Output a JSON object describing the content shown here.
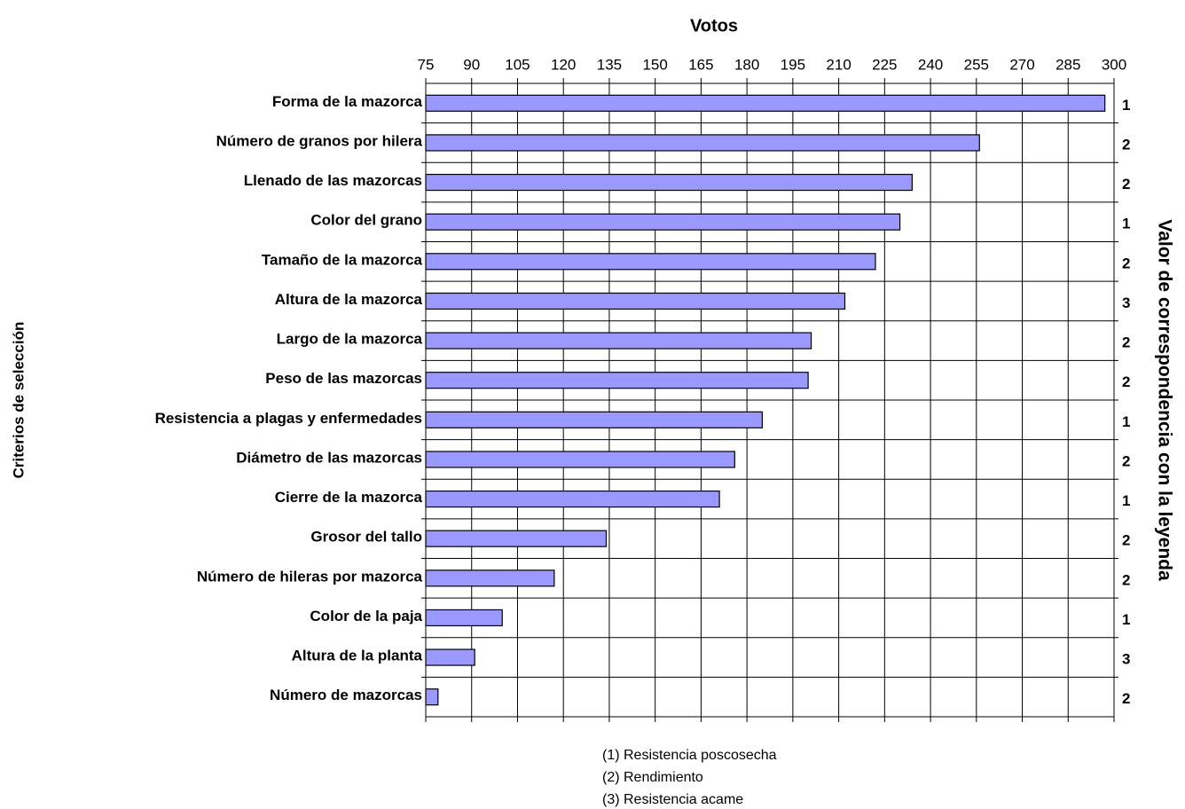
{
  "chart_data": {
    "type": "bar",
    "orientation": "horizontal",
    "x_label": "Votos",
    "y_label": "Criterios de selección",
    "y2_label": "Valor de correspondencia con la leyenda",
    "categories": [
      "Forma de la mazorca",
      "Número de granos por hilera",
      "Llenado de las mazorcas",
      "Color del grano",
      "Tamaño de la mazorca",
      "Altura de la mazorca",
      "Largo de la mazorca",
      "Peso de las mazorcas",
      "Resistencia a plagas y enfermedades",
      "Diámetro de las mazorcas",
      "Cierre de la mazorca",
      "Grosor del tallo",
      "Número de hileras por mazorca",
      "Color de la paja",
      "Altura de la planta",
      "Número de mazorcas"
    ],
    "values": [
      297,
      256,
      234,
      230,
      222,
      212,
      201,
      200,
      185,
      176,
      171,
      134,
      117,
      100,
      91,
      79
    ],
    "correspondence": [
      1,
      2,
      2,
      1,
      2,
      3,
      2,
      2,
      1,
      2,
      1,
      2,
      2,
      1,
      3,
      2
    ],
    "color": "#9999ff",
    "xlim": [
      75,
      300
    ],
    "xticks": [
      75,
      90,
      105,
      120,
      135,
      150,
      165,
      180,
      195,
      210,
      225,
      240,
      255,
      270,
      285,
      300
    ],
    "grid": true,
    "legend_notes": [
      "(1) Resistencia poscosecha",
      "(2) Rendimiento",
      "(3) Resistencia acame"
    ]
  }
}
